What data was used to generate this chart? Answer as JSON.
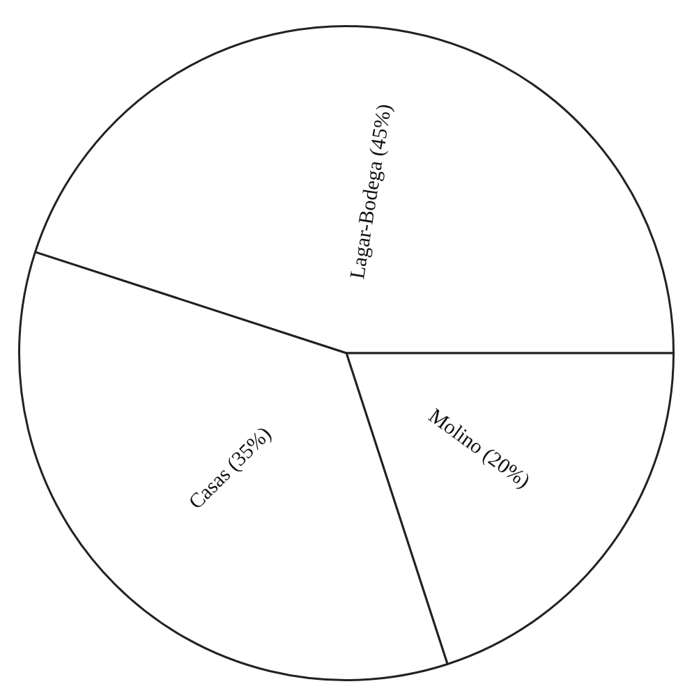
{
  "chart_data": {
    "type": "pie",
    "categories": [
      "Lagar-Bodega",
      "Molino",
      "Casas"
    ],
    "values": [
      45,
      20,
      35
    ],
    "value_labels": [
      "(45%)",
      "(20%)",
      "(35%)"
    ],
    "colors": [
      "#ffffff",
      "#ffffff",
      "#ffffff"
    ],
    "legend": false
  }
}
